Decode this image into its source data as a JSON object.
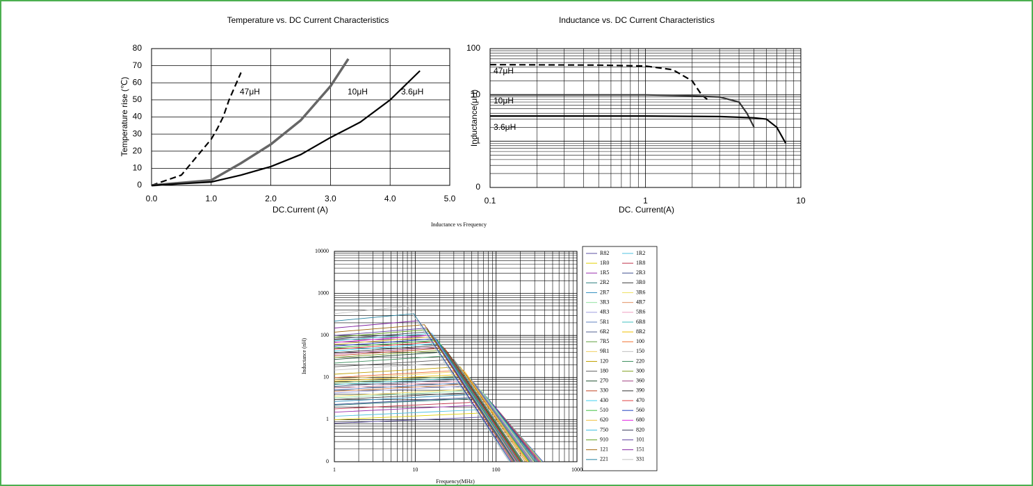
{
  "chart_data": [
    {
      "type": "line",
      "title": "Temperature vs. DC Current Characteristics",
      "x_label": "DC.Current (A)",
      "y_label": "Temperature rise (℃)",
      "xlim": [
        0,
        5
      ],
      "xticks": [
        {
          "value": 0,
          "label": "0.0"
        },
        {
          "value": 1,
          "label": "1.0"
        },
        {
          "value": 2,
          "label": "2.0"
        },
        {
          "value": 3,
          "label": "3.0"
        },
        {
          "value": 4,
          "label": "4.0"
        },
        {
          "value": 5,
          "label": "5.0"
        }
      ],
      "ylim": [
        0,
        80
      ],
      "yticks": [
        0,
        10,
        20,
        30,
        40,
        50,
        60,
        70,
        80
      ],
      "grid": true,
      "legend": "annotations",
      "series": [
        {
          "name": "47μH",
          "color": "#000000",
          "dash": true,
          "x": [
            0,
            0.5,
            1.0,
            1.1,
            1.2,
            1.3,
            1.5
          ],
          "values": [
            0,
            6,
            27,
            33,
            40,
            50,
            66
          ]
        },
        {
          "name": "10μH",
          "color": "#666666",
          "x": [
            0,
            1.0,
            1.5,
            2.0,
            2.5,
            3.0,
            3.3
          ],
          "values": [
            0,
            3,
            13,
            24,
            38,
            58,
            74
          ]
        },
        {
          "name": "3.6μH",
          "color": "#000000",
          "x": [
            0,
            1.0,
            1.5,
            2.0,
            2.5,
            3.0,
            3.5,
            4.0,
            4.5
          ],
          "values": [
            0,
            2,
            6,
            11,
            18,
            28,
            37,
            50,
            67
          ]
        }
      ]
    },
    {
      "type": "line",
      "title": "Inductance vs. DC Current Characteristics",
      "x_label": "DC. Current(A)",
      "y_label": "Inductance(μH)",
      "xlog": true,
      "ylog": true,
      "xlim": [
        0.1,
        10
      ],
      "xticks": [
        0.1,
        1,
        10
      ],
      "ylim": [
        0.1,
        100
      ],
      "yticks": [
        {
          "value": 0.1,
          "label": "0"
        },
        1,
        10,
        100
      ],
      "grid": true,
      "minor_grid": true,
      "legend": "annotations",
      "series": [
        {
          "name": "47μH",
          "color": "#000000",
          "dash": true,
          "x": [
            0.1,
            0.5,
            1.0,
            1.5,
            2.0,
            2.3,
            2.5
          ],
          "values": [
            45,
            44,
            42,
            35,
            20,
            10,
            8
          ]
        },
        {
          "name": "10μH",
          "color": "#333333",
          "x": [
            0.1,
            1,
            2,
            3,
            4,
            4.5,
            5
          ],
          "values": [
            10,
            10,
            9.5,
            9,
            7,
            4,
            2
          ]
        },
        {
          "name": "3.6μH",
          "color": "#000000",
          "x": [
            0.1,
            1,
            3,
            5,
            6,
            7,
            8
          ],
          "values": [
            3.5,
            3.5,
            3.4,
            3.2,
            3,
            2,
            0.9
          ]
        }
      ]
    },
    {
      "type": "line",
      "title": "Inductance vs Frequency",
      "x_label": "Frequency(MHz)",
      "y_label": "Inductance (nH)",
      "xlog": true,
      "ylog": true,
      "xlim": [
        1,
        1000
      ],
      "xticks": [
        1,
        10,
        100,
        1000
      ],
      "ylim": [
        0.1,
        10000
      ],
      "yticks": [
        {
          "value": 0.1,
          "label": "0"
        },
        1,
        10,
        100,
        1000,
        10000
      ],
      "grid": true,
      "minor_grid": true,
      "legend": "right",
      "series": [
        {
          "name": "R82",
          "color": "#5b4fa0",
          "x": [
            1,
            122,
            380
          ],
          "values": [
            0.82,
            1.2,
            0.1
          ]
        },
        {
          "name": "1R2",
          "color": "#4fc3e0",
          "x": [
            1,
            102,
            370
          ],
          "values": [
            1.2,
            1.8,
            0.1
          ]
        },
        {
          "name": "1R0",
          "color": "#e0d000",
          "x": [
            1,
            111,
            360
          ],
          "values": [
            1,
            1.5,
            0.1
          ]
        },
        {
          "name": "1R8",
          "color": "#c0304a",
          "x": [
            1,
            85,
            340
          ],
          "values": [
            1.8,
            2.7,
            0.1
          ]
        },
        {
          "name": "1R5",
          "color": "#9b30b0",
          "x": [
            1,
            92,
            350
          ],
          "values": [
            1.5,
            2.3,
            0.1
          ]
        },
        {
          "name": "2R3",
          "color": "#405090",
          "x": [
            1,
            76,
            330
          ],
          "values": [
            2.3,
            3.5,
            0.1
          ]
        },
        {
          "name": "2R2",
          "color": "#308080",
          "x": [
            1,
            78,
            320
          ],
          "values": [
            2.2,
            3.3,
            0.1
          ]
        },
        {
          "name": "3R0",
          "color": "#404040",
          "x": [
            1,
            67,
            300
          ],
          "values": [
            3,
            4.5,
            0.1
          ]
        },
        {
          "name": "2R7",
          "color": "#3090c0",
          "x": [
            1,
            71,
            310
          ],
          "values": [
            2.7,
            4.1,
            0.1
          ]
        },
        {
          "name": "3R6",
          "color": "#f0e060",
          "x": [
            1,
            62,
            290
          ],
          "values": [
            3.6,
            5.4,
            0.1
          ]
        },
        {
          "name": "3R3",
          "color": "#90e0a0",
          "x": [
            1,
            65,
            295
          ],
          "values": [
            3.3,
            5,
            0.1
          ]
        },
        {
          "name": "4R7",
          "color": "#e09060",
          "x": [
            1,
            55,
            280
          ],
          "values": [
            4.7,
            7.1,
            0.1
          ]
        },
        {
          "name": "4R3",
          "color": "#a0a0e0",
          "x": [
            1,
            57,
            285
          ],
          "values": [
            4.3,
            6.5,
            0.1
          ]
        },
        {
          "name": "5R6",
          "color": "#f0a0c0",
          "x": [
            1,
            51,
            270
          ],
          "values": [
            5.6,
            8.4,
            0.1
          ]
        },
        {
          "name": "5R1",
          "color": "#6080c0",
          "x": [
            1,
            53,
            275
          ],
          "values": [
            5.1,
            7.7,
            0.1
          ]
        },
        {
          "name": "6R8",
          "color": "#40c0c0",
          "x": [
            1,
            47,
            260
          ],
          "values": [
            6.8,
            10,
            0.1
          ]
        },
        {
          "name": "6R2",
          "color": "#506090",
          "x": [
            1,
            48,
            265
          ],
          "values": [
            6.2,
            9.3,
            0.1
          ]
        },
        {
          "name": "8R2",
          "color": "#f0c000",
          "x": [
            1,
            43,
            250
          ],
          "values": [
            8.2,
            12,
            0.1
          ]
        },
        {
          "name": "7R5",
          "color": "#60a040",
          "x": [
            1,
            44,
            255
          ],
          "values": [
            7.5,
            11,
            0.1
          ]
        },
        {
          "name": "100",
          "color": "#f07030",
          "x": [
            1,
            39,
            240
          ],
          "values": [
            10,
            15,
            0.1
          ]
        },
        {
          "name": "9R1",
          "color": "#f0d060",
          "x": [
            1,
            41,
            245
          ],
          "values": [
            9.1,
            14,
            0.1
          ]
        },
        {
          "name": "150",
          "color": "#c0c0c0",
          "x": [
            1,
            32,
            220
          ],
          "values": [
            15,
            23,
            0.1
          ]
        },
        {
          "name": "120",
          "color": "#c0a000",
          "x": [
            1,
            36,
            230
          ],
          "values": [
            12,
            18,
            0.1
          ]
        },
        {
          "name": "220",
          "color": "#409060",
          "x": [
            1,
            27,
            210
          ],
          "values": [
            22,
            33,
            0.1
          ]
        },
        {
          "name": "180",
          "color": "#606060",
          "x": [
            1,
            30,
            215
          ],
          "values": [
            18,
            27,
            0.1
          ]
        },
        {
          "name": "300",
          "color": "#80a020",
          "x": [
            1,
            24,
            200
          ],
          "values": [
            30,
            45,
            0.1
          ]
        },
        {
          "name": "270",
          "color": "#205030",
          "x": [
            1,
            25,
            205
          ],
          "values": [
            27,
            41,
            0.1
          ]
        },
        {
          "name": "360",
          "color": "#a04080",
          "x": [
            1,
            22,
            195
          ],
          "values": [
            36,
            54,
            0.1
          ]
        },
        {
          "name": "330",
          "color": "#c04020",
          "x": [
            1,
            23,
            198
          ],
          "values": [
            33,
            50,
            0.1
          ]
        },
        {
          "name": "390",
          "color": "#303030",
          "x": [
            1,
            21,
            190
          ],
          "values": [
            39,
            59,
            0.1
          ]
        },
        {
          "name": "430",
          "color": "#40d0f0",
          "x": [
            1,
            20,
            188
          ],
          "values": [
            43,
            65,
            0.1
          ]
        },
        {
          "name": "470",
          "color": "#e04040",
          "x": [
            1,
            19,
            185
          ],
          "values": [
            47,
            71,
            0.1
          ]
        },
        {
          "name": "510",
          "color": "#40c040",
          "x": [
            1,
            19,
            182
          ],
          "values": [
            51,
            77,
            0.1
          ]
        },
        {
          "name": "560",
          "color": "#2040c0",
          "x": [
            1,
            18,
            180
          ],
          "values": [
            56,
            84,
            0.1
          ]
        },
        {
          "name": "620",
          "color": "#f0c040",
          "x": [
            1,
            17,
            178
          ],
          "values": [
            62,
            93,
            0.1
          ]
        },
        {
          "name": "680",
          "color": "#e020e0",
          "x": [
            1,
            16,
            175
          ],
          "values": [
            68,
            102,
            0.1
          ]
        },
        {
          "name": "750",
          "color": "#40c0e0",
          "x": [
            1,
            16,
            172
          ],
          "values": [
            75,
            113,
            0.1
          ]
        },
        {
          "name": "820",
          "color": "#404060",
          "x": [
            1,
            15,
            170
          ],
          "values": [
            82,
            123,
            0.1
          ]
        },
        {
          "name": "910",
          "color": "#60a020",
          "x": [
            1,
            14,
            168
          ],
          "values": [
            91,
            137,
            0.1
          ]
        },
        {
          "name": "101",
          "color": "#6040a0",
          "x": [
            1,
            14,
            165
          ],
          "values": [
            100,
            150,
            0.1
          ]
        },
        {
          "name": "121",
          "color": "#a06000",
          "x": [
            1,
            13,
            160
          ],
          "values": [
            120,
            180,
            0.1
          ]
        },
        {
          "name": "151",
          "color": "#8020a0",
          "x": [
            1,
            11,
            155
          ],
          "values": [
            150,
            225,
            0.1
          ]
        },
        {
          "name": "221",
          "color": "#2080a0",
          "x": [
            1,
            9.6,
            150
          ],
          "values": [
            220,
            330,
            0.1
          ]
        },
        {
          "name": "331",
          "color": "#c0c0c0",
          "x": [
            1,
            8,
            145
          ],
          "values": [
            330,
            495,
            0.1
          ]
        }
      ]
    }
  ]
}
